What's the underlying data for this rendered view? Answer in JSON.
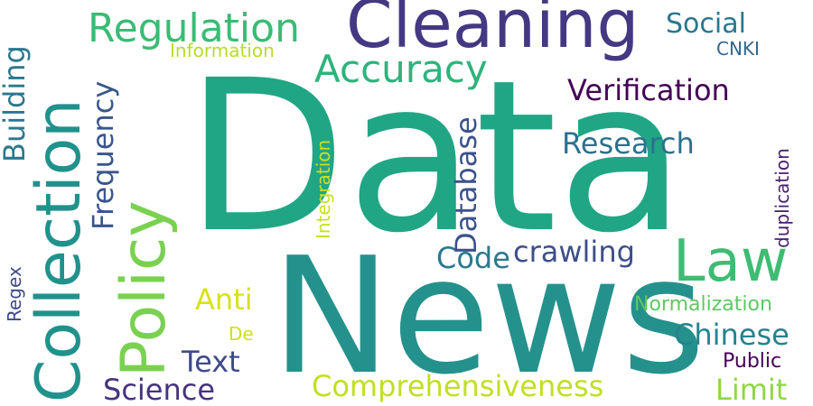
{
  "words": [
    {
      "text": "Data",
      "color": "#21a685"
    },
    {
      "text": "News",
      "color": "#25918c"
    },
    {
      "text": "Cleaning",
      "color": "#453882"
    },
    {
      "text": "Collection",
      "color": "#21918c"
    },
    {
      "text": "Policy",
      "color": "#7ad151"
    },
    {
      "text": "Regulation",
      "color": "#3bbb75"
    },
    {
      "text": "Law",
      "color": "#3fbc73"
    },
    {
      "text": "Accuracy",
      "color": "#2eb37c"
    },
    {
      "text": "Verification",
      "color": "#440154"
    },
    {
      "text": "Research",
      "color": "#2c718e"
    },
    {
      "text": "Building",
      "color": "#2a788e"
    },
    {
      "text": "Frequency",
      "color": "#39568c"
    },
    {
      "text": "Database",
      "color": "#3b528b"
    },
    {
      "text": "Code",
      "color": "#2a788e"
    },
    {
      "text": "crawling",
      "color": "#3d4e8a"
    },
    {
      "text": "Social",
      "color": "#2a768e"
    },
    {
      "text": "Information",
      "color": "#b5de2b"
    },
    {
      "text": "CNKI",
      "color": "#31668e"
    },
    {
      "text": "Integration",
      "color": "#c8e020"
    },
    {
      "text": "duplication",
      "color": "#481f70"
    },
    {
      "text": "Anti",
      "color": "#d8e219"
    },
    {
      "text": "Normalization",
      "color": "#5ec962"
    },
    {
      "text": "Chinese",
      "color": "#26828e"
    },
    {
      "text": "Text",
      "color": "#3e4a89"
    },
    {
      "text": "Science",
      "color": "#46337e"
    },
    {
      "text": "Comprehensiveness",
      "color": "#c2df23"
    },
    {
      "text": "Limit",
      "color": "#8fd744"
    },
    {
      "text": "Public",
      "color": "#440154"
    },
    {
      "text": "Regex",
      "color": "#3e4989"
    },
    {
      "text": "De",
      "color": "#cde11d"
    }
  ]
}
